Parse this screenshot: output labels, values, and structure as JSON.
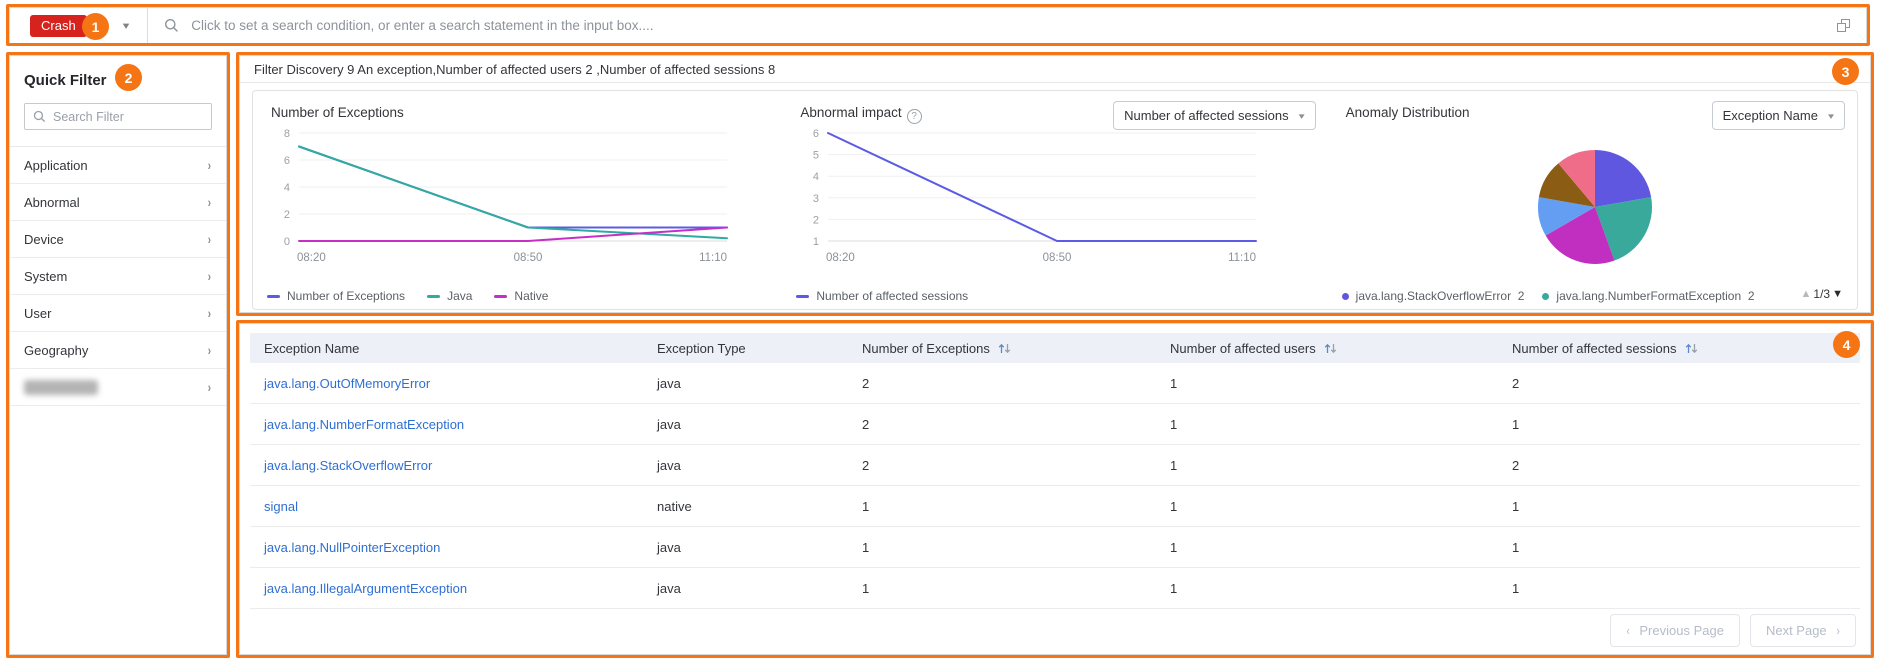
{
  "colors": {
    "orange_annotation": "#f57414",
    "crash_red": "#d6231e",
    "link_blue": "#2f6fd2",
    "series_blue": "#5b5be6",
    "series_teal": "#2fab9f",
    "series_magenta": "#c62fc6",
    "table_header_bg": "#edf1f7"
  },
  "annotations": {
    "badge1": "1",
    "badge2": "2",
    "badge3": "3",
    "badge4": "4"
  },
  "topbar": {
    "crash_label": "Crash",
    "search_placeholder": "Click to set a search condition, or enter a search statement in the input box...."
  },
  "sidebar": {
    "title": "Quick Filter",
    "search_placeholder": "Search Filter",
    "items": [
      {
        "label": "Application",
        "redacted": false
      },
      {
        "label": "Abnormal",
        "redacted": false
      },
      {
        "label": "Device",
        "redacted": false
      },
      {
        "label": "System",
        "redacted": false
      },
      {
        "label": "User",
        "redacted": false
      },
      {
        "label": "Geography",
        "redacted": false
      },
      {
        "label": "",
        "redacted": true
      }
    ]
  },
  "charts_panel": {
    "filter_summary": "Filter Discovery 9 An exception,Number of affected users 2 ,Number of affected sessions 8"
  },
  "chart_data": [
    {
      "type": "line",
      "title": "Number of Exceptions",
      "x": [
        "08:20",
        "08:50",
        "11:10"
      ],
      "series": [
        {
          "name": "Number of Exceptions",
          "color": "#5b5be6",
          "values": [
            7,
            1,
            1
          ]
        },
        {
          "name": "Java",
          "color": "#2fab9f",
          "values": [
            7,
            1,
            0.2
          ]
        },
        {
          "name": "Native",
          "color": "#c62fc6",
          "values": [
            0,
            0,
            1
          ]
        }
      ],
      "ylim": [
        0,
        8
      ],
      "yticks": [
        0,
        2,
        4,
        6,
        8
      ],
      "grid": true,
      "legend_position": "bottom"
    },
    {
      "type": "line",
      "title": "Abnormal impact",
      "has_help_icon": true,
      "dropdown_value": "Number of affected sessions",
      "x": [
        "08:20",
        "08:50",
        "11:10"
      ],
      "series": [
        {
          "name": "Number of affected sessions",
          "color": "#5b5be6",
          "values": [
            6,
            1,
            1
          ]
        }
      ],
      "ylim": [
        1,
        6
      ],
      "yticks": [
        1,
        2,
        3,
        4,
        5,
        6
      ],
      "grid": true,
      "legend_position": "bottom"
    },
    {
      "type": "pie",
      "title": "Anomaly Distribution",
      "dropdown_value": "Exception Name",
      "slices": [
        {
          "value": 2,
          "color": "#5f57e0"
        },
        {
          "value": 2,
          "color": "#38a99b"
        },
        {
          "value": 2,
          "color": "#c02fc0"
        },
        {
          "value": 1,
          "color": "#639ef2"
        },
        {
          "value": 1,
          "color": "#8b5c13"
        },
        {
          "value": 1,
          "color": "#f06d89"
        }
      ],
      "legend": [
        {
          "label": "java.lang.StackOverflowError",
          "count": "2",
          "color": "#5f57e0"
        },
        {
          "label": "java.lang.NumberFormatException",
          "count": "2",
          "color": "#38a99b"
        }
      ],
      "pager": "1/3"
    }
  ],
  "table": {
    "columns": [
      {
        "label": "Exception Name",
        "sortable": false
      },
      {
        "label": "Exception Type",
        "sortable": false
      },
      {
        "label": "Number of Exceptions",
        "sortable": true
      },
      {
        "label": "Number of affected users",
        "sortable": true
      },
      {
        "label": "Number of affected sessions",
        "sortable": true
      }
    ],
    "rows": [
      [
        "java.lang.OutOfMemoryError",
        "java",
        "2",
        "1",
        "2"
      ],
      [
        "java.lang.NumberFormatException",
        "java",
        "2",
        "1",
        "1"
      ],
      [
        "java.lang.StackOverflowError",
        "java",
        "2",
        "1",
        "2"
      ],
      [
        "signal",
        "native",
        "1",
        "1",
        "1"
      ],
      [
        "java.lang.NullPointerException",
        "java",
        "1",
        "1",
        "1"
      ],
      [
        "java.lang.IllegalArgumentException",
        "java",
        "1",
        "1",
        "1"
      ]
    ],
    "pagination": {
      "prev_label": "Previous Page",
      "next_label": "Next Page"
    }
  }
}
